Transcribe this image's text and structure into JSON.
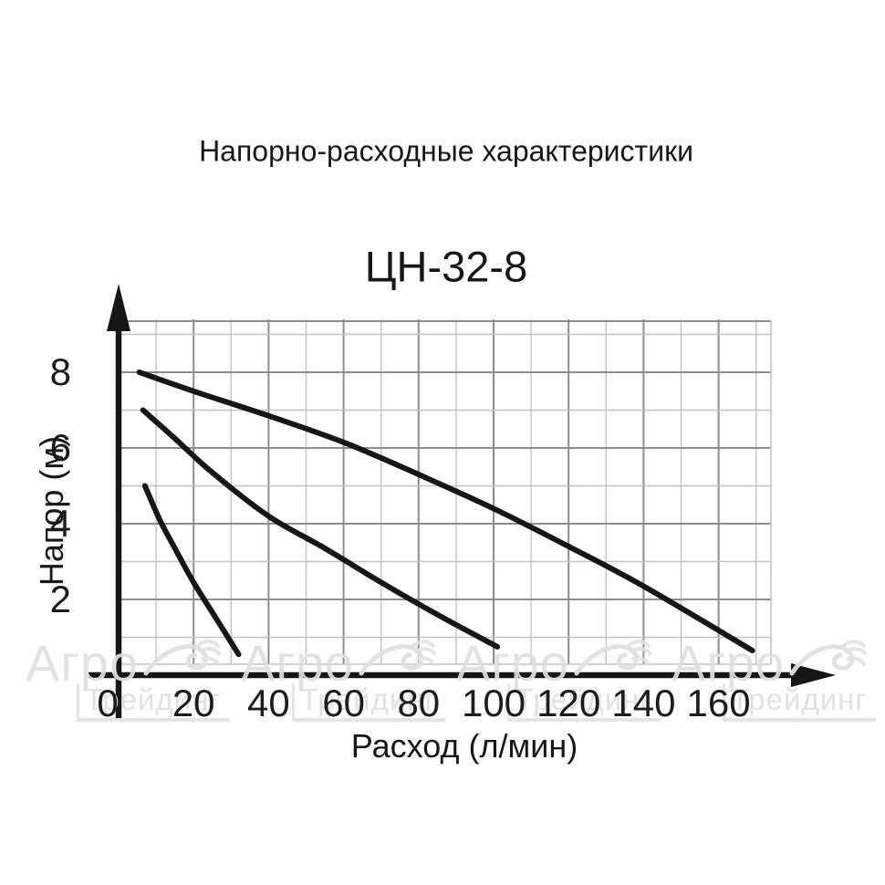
{
  "figure": {
    "suptitle": "Напорно-расходные характеристики",
    "watermark": {
      "line1": "Агро",
      "line2": "Трейдинг",
      "count": 4,
      "color": "#e2e2e2"
    }
  },
  "chart_data": {
    "type": "line",
    "title": "ЦН-32-8",
    "xlabel": "Расход (л/мин)",
    "ylabel": "Напор (м)",
    "xlim": [
      0,
      174
    ],
    "ylim": [
      0,
      9.35
    ],
    "xticks": [
      0,
      20,
      40,
      60,
      80,
      100,
      120,
      140,
      160
    ],
    "yticks": [
      2,
      4,
      6,
      8
    ],
    "grid": {
      "visible": true,
      "x_minor_step": 10,
      "x_major_step": 20,
      "y_minor_step": 1,
      "y_major_step": 2
    },
    "legend": "none",
    "series": [
      {
        "name": "curve-upper",
        "points": [
          [
            5.5,
            8.0
          ],
          [
            20,
            7.5
          ],
          [
            40,
            6.85
          ],
          [
            60,
            6.15
          ],
          [
            80,
            5.3
          ],
          [
            100,
            4.4
          ],
          [
            120,
            3.4
          ],
          [
            140,
            2.35
          ],
          [
            169,
            0.65
          ]
        ]
      },
      {
        "name": "curve-middle",
        "points": [
          [
            6.5,
            7.0
          ],
          [
            15,
            6.25
          ],
          [
            25,
            5.35
          ],
          [
            40,
            4.2
          ],
          [
            55,
            3.35
          ],
          [
            70,
            2.45
          ],
          [
            85,
            1.6
          ],
          [
            101,
            0.75
          ]
        ]
      },
      {
        "name": "curve-lower",
        "points": [
          [
            7,
            5.0
          ],
          [
            11,
            4.1
          ],
          [
            15,
            3.35
          ],
          [
            20,
            2.45
          ],
          [
            26,
            1.5
          ],
          [
            32,
            0.55
          ]
        ]
      }
    ],
    "colors": {
      "curve": "#161616",
      "axis": "#161616",
      "grid_minor": "#c3c3c3",
      "grid_major": "#8d8d8d",
      "text": "#1c1c1c"
    }
  }
}
